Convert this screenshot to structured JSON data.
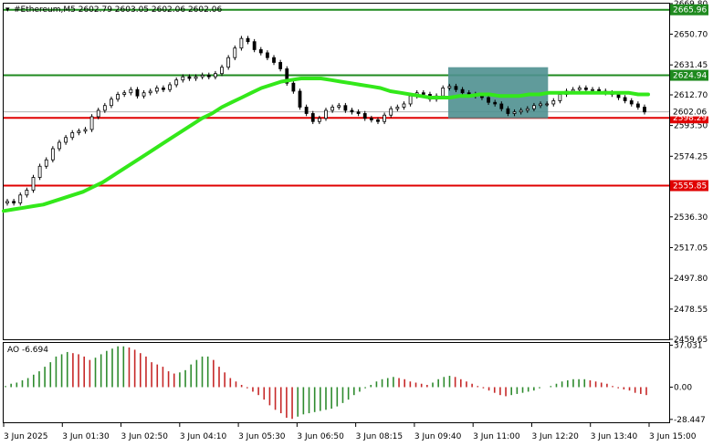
{
  "header": {
    "symbol_label": "#Ethereum,M5  2602.79 2603.05 2602.06 2602.06"
  },
  "ao": {
    "label": "AO -6.694"
  },
  "colors": {
    "bull": "#2e7d32",
    "bear": "#c62828",
    "ma": "#33e81a",
    "resistance": "#1f8a1f",
    "support": "#e00000",
    "box": "#4f9090",
    "ao_up": "#2e8b2e",
    "ao_down": "#c62828"
  },
  "chart_data": [
    {
      "type": "candlestick",
      "title": "#Ethereum,M5",
      "y_ticks": [
        "2669.80",
        "2650.70",
        "2631.45",
        "2612.70",
        "2593.50",
        "2574.25",
        "2555.00",
        "2536.30",
        "2517.05",
        "2497.80",
        "2478.55",
        "2459.65"
      ],
      "y_ticks_values": [
        2669.8,
        2650.7,
        2631.45,
        2612.7,
        2593.5,
        2574.25,
        2555.0,
        2536.3,
        2517.05,
        2497.8,
        2478.55,
        2459.65
      ],
      "ylim": [
        2459.65,
        2669.8
      ],
      "x_ticks": [
        "3 Jun 2025",
        "3 Jun 01:30",
        "3 Jun 02:50",
        "3 Jun 04:10",
        "3 Jun 05:30",
        "3 Jun 06:50",
        "3 Jun 08:15",
        "3 Jun 09:40",
        "3 Jun 11:00",
        "3 Jun 12:20",
        "3 Jun 13:40",
        "3 Jun 15:00"
      ],
      "levels": [
        {
          "value": 2665.96,
          "label": "2665.96",
          "kind": "resistance"
        },
        {
          "value": 2624.94,
          "label": "2624.94",
          "kind": "resistance"
        },
        {
          "value": 2598.29,
          "label": "2598.29",
          "kind": "support"
        },
        {
          "value": 2555.85,
          "label": "2555.85",
          "kind": "support"
        }
      ],
      "current_price": {
        "value": 2602.06,
        "label": "2602.06"
      },
      "close": [
        2546,
        2545,
        2550,
        2553,
        2561,
        2568,
        2572,
        2579,
        2583,
        2586,
        2589,
        2590,
        2591,
        2599,
        2603,
        2606,
        2610,
        2613,
        2614,
        2616,
        2612,
        2614,
        2615,
        2617,
        2616,
        2619,
        2622,
        2624,
        2623,
        2624,
        2625,
        2624,
        2626,
        2630,
        2636,
        2642,
        2648,
        2646,
        2641,
        2639,
        2636,
        2633,
        2629,
        2620,
        2615,
        2605,
        2601,
        2596,
        2598,
        2603,
        2605,
        2606,
        2603,
        2602,
        2601,
        2598,
        2597,
        2596,
        2600,
        2604,
        2605,
        2607,
        2612,
        2614,
        2613,
        2610,
        2612,
        2617,
        2618,
        2616,
        2614,
        2613,
        2612,
        2611,
        2608,
        2607,
        2604,
        2601,
        2602,
        2603,
        2604,
        2606,
        2607,
        2607,
        2609,
        2613,
        2615,
        2616,
        2617,
        2616,
        2616,
        2615,
        2614,
        2613,
        2611,
        2609,
        2607,
        2605,
        2602
      ],
      "ma": [
        2540,
        2541,
        2542,
        2543,
        2544,
        2546,
        2548,
        2550,
        2552,
        2555,
        2558,
        2562,
        2566,
        2570,
        2574,
        2578,
        2582,
        2586,
        2590,
        2594,
        2598,
        2601,
        2605,
        2608,
        2611,
        2614,
        2617,
        2619,
        2621,
        2622,
        2623,
        2623,
        2623,
        2622,
        2621,
        2620,
        2619,
        2618,
        2617,
        2615,
        2614,
        2613,
        2612,
        2611,
        2611,
        2611,
        2612,
        2612,
        2613,
        2613,
        2612,
        2612,
        2612,
        2613,
        2613,
        2614,
        2614,
        2614,
        2614,
        2614,
        2614,
        2614,
        2614,
        2614,
        2613,
        2613
      ],
      "box": {
        "from_x": 0.668,
        "to_x": 0.818,
        "from_y": 2630,
        "to_y": 2598
      }
    },
    {
      "type": "bar",
      "title": "AO -6.694",
      "y_ticks": [
        "37.031",
        "0.00",
        "-28.447"
      ],
      "y_ticks_values": [
        37.031,
        0.0,
        -28.447
      ],
      "ylim": [
        -31,
        39
      ],
      "values": [
        1,
        3,
        4,
        6,
        8,
        11,
        14,
        18,
        22,
        27,
        29,
        31,
        30,
        29,
        27,
        24,
        26,
        29,
        32,
        34,
        36,
        36,
        35,
        33,
        30,
        27,
        22,
        20,
        18,
        14,
        12,
        13,
        15,
        20,
        24,
        27,
        27,
        24,
        18,
        13,
        8,
        5,
        2,
        -1,
        -4,
        -7,
        -11,
        -16,
        -20,
        -23,
        -27,
        -28,
        -26,
        -24,
        -23,
        -22,
        -21,
        -20,
        -19,
        -17,
        -14,
        -11,
        -7,
        -4,
        -1,
        2,
        5,
        7,
        8,
        9,
        8,
        7,
        5,
        4,
        3,
        2,
        4,
        7,
        9,
        10,
        9,
        7,
        5,
        3,
        1,
        -1,
        -3,
        -5,
        -7,
        -8,
        -7,
        -6,
        -5,
        -4,
        -3,
        -1,
        0,
        1,
        3,
        5,
        6,
        7,
        7,
        7,
        6,
        5,
        4,
        3,
        1,
        -1,
        -2,
        -3,
        -5,
        -6,
        -7
      ]
    }
  ]
}
